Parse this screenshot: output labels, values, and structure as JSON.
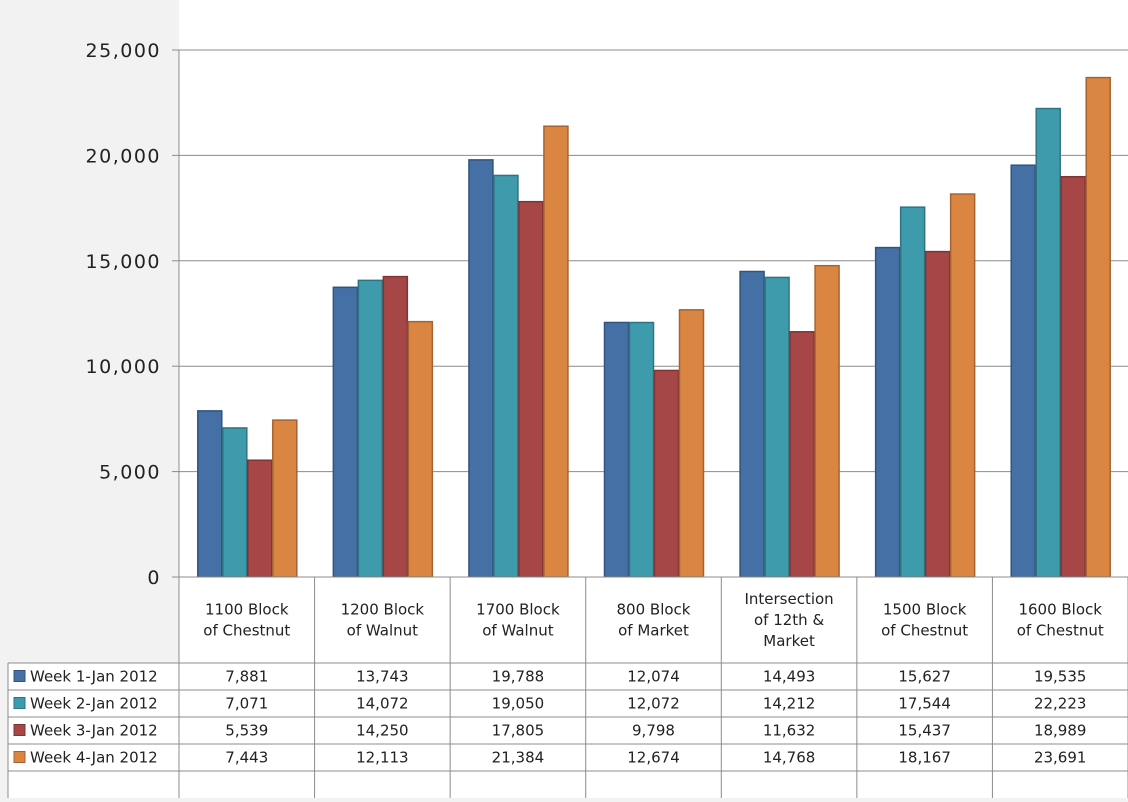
{
  "chart_data": {
    "type": "bar",
    "categories": [
      "1100 Block of Chestnut",
      "1200 Block of Walnut",
      "1700 Block of Walnut",
      "800 Block of Market",
      "Intersection of 12th & Market",
      "1500 Block of Chestnut",
      "1600 Block of Chestnut"
    ],
    "category_lines": [
      [
        "1100 Block",
        "of Chestnut"
      ],
      [
        "1200 Block",
        "of Walnut"
      ],
      [
        "1700 Block",
        "of Walnut"
      ],
      [
        "800 Block",
        "of Market"
      ],
      [
        "Intersection",
        "of 12th &",
        "Market"
      ],
      [
        "1500 Block",
        "of Chestnut"
      ],
      [
        "1600 Block",
        "of Chestnut"
      ]
    ],
    "series": [
      {
        "name": "Week 1-Jan 2012",
        "color": "#4470a6",
        "values": [
          7881,
          13743,
          19788,
          12074,
          14493,
          15627,
          19535
        ],
        "labels": [
          "7,881",
          "13,743",
          "19,788",
          "12,074",
          "14,493",
          "15,627",
          "19,535"
        ]
      },
      {
        "name": "Week 2-Jan 2012",
        "color": "#3e9bac",
        "values": [
          7071,
          14072,
          19050,
          12072,
          14212,
          17544,
          22223
        ],
        "labels": [
          "7,071",
          "14,072",
          "19,050",
          "12,072",
          "14,212",
          "17,544",
          "22,223"
        ]
      },
      {
        "name": "Week 3-Jan 2012",
        "color": "#a64646",
        "values": [
          5539,
          14250,
          17805,
          9798,
          11632,
          15437,
          18989
        ],
        "labels": [
          "5,539",
          "14,250",
          "17,805",
          "9,798",
          "11,632",
          "15,437",
          "18,989"
        ]
      },
      {
        "name": "Week 4-Jan 2012",
        "color": "#db8542",
        "values": [
          7443,
          12113,
          21384,
          12674,
          14768,
          18167,
          23691
        ],
        "labels": [
          "7,443",
          "12,113",
          "21,384",
          "12,674",
          "14,768",
          "18,167",
          "23,691"
        ]
      }
    ],
    "ylim": [
      0,
      25000
    ],
    "yticks": [
      0,
      5000,
      10000,
      15000,
      20000,
      25000
    ],
    "ytick_labels": [
      "0",
      "5,000",
      "10,000",
      "15,000",
      "20,000",
      "25,000"
    ],
    "grid": true,
    "legend": "data-table"
  }
}
